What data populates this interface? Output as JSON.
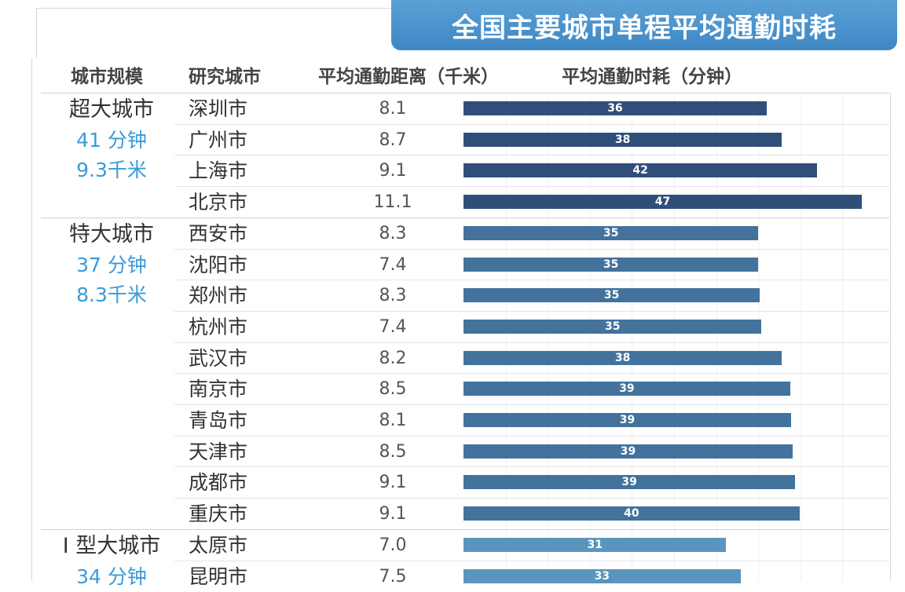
{
  "title": "全国主要城市单程平均通勤时耗",
  "headers": {
    "scale": "城市规模",
    "city": "研究城市",
    "distance": "平均通勤距离（千米）",
    "time": "平均通勤时耗（分钟）"
  },
  "groups": [
    {
      "name": "超大城市",
      "time": "41 分钟",
      "distance": "9.3千米"
    },
    {
      "name": "特大城市",
      "time": "37 分钟",
      "distance": "8.3千米"
    },
    {
      "name": "I 型大城市",
      "time": "34 分钟",
      "distance": ""
    }
  ],
  "colors": {
    "title_bg": "#4a93cd",
    "megacity_bar": "#2f4f7a",
    "supercity_bar": "#43729c",
    "large_city_bar": "#5a95bd",
    "group_stat": "#3a9ad9"
  },
  "chart_data": {
    "type": "bar",
    "orientation": "horizontal",
    "title": "全国主要城市单程平均通勤时耗",
    "xlabel": "平均通勤时耗（分钟）",
    "categories": [
      "深圳市",
      "广州市",
      "上海市",
      "北京市",
      "西安市",
      "沈阳市",
      "郑州市",
      "杭州市",
      "武汉市",
      "南京市",
      "青岛市",
      "天津市",
      "成都市",
      "重庆市",
      "太原市",
      "昆明市"
    ],
    "series": [
      {
        "name": "平均通勤距离（千米）",
        "values": [
          "8.1",
          "8.7",
          "9.1",
          "11.1",
          "8.3",
          "7.4",
          "8.3",
          "7.4",
          "8.2",
          "8.5",
          "8.1",
          "8.5",
          "9.1",
          "9.1",
          "7.0",
          "7.5"
        ]
      },
      {
        "name": "平均通勤时耗（分钟）",
        "values": [
          36,
          38,
          42,
          47,
          35,
          35,
          35,
          35,
          38,
          39,
          39,
          39,
          39,
          40,
          31,
          33
        ]
      }
    ],
    "bar_values_precise": [
      36.0,
      37.8,
      42.0,
      47.3,
      35.0,
      35.0,
      35.2,
      35.4,
      37.8,
      38.8,
      38.9,
      39.1,
      39.4,
      39.9,
      31.2,
      32.9
    ],
    "group_of_row": [
      0,
      0,
      0,
      0,
      1,
      1,
      1,
      1,
      1,
      1,
      1,
      1,
      1,
      1,
      2,
      2
    ],
    "xlim": [
      0,
      48
    ],
    "grid": true
  }
}
